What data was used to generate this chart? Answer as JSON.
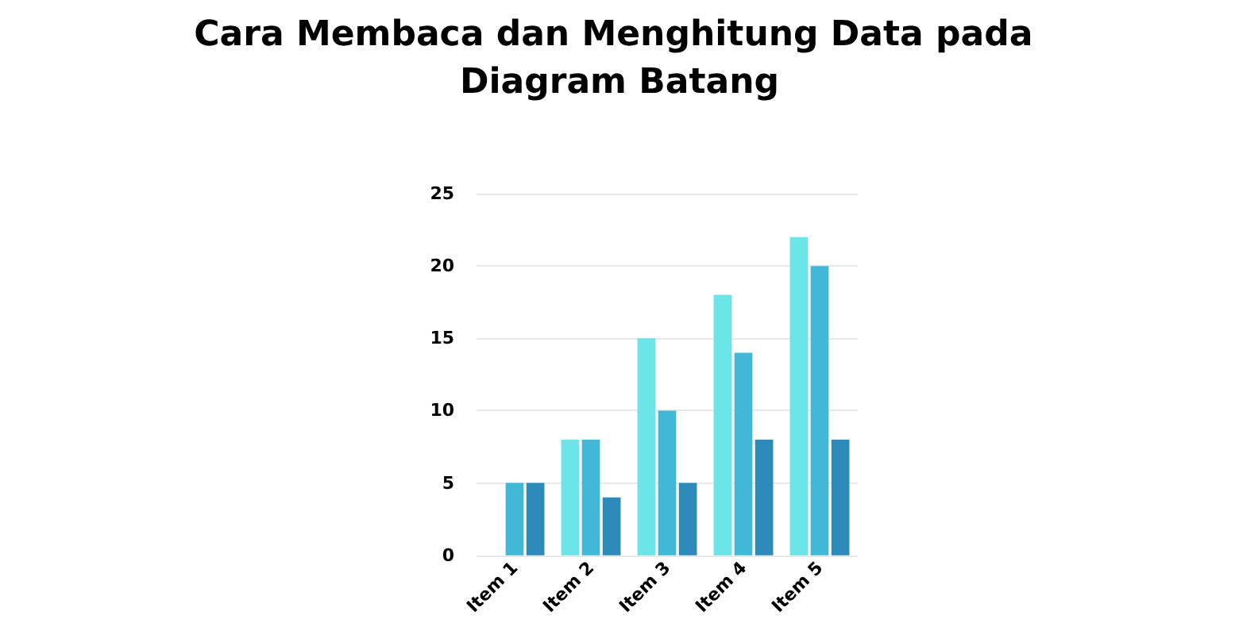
{
  "chart_data": {
    "type": "bar",
    "title": "Cara Membaca dan Menghitung Data pada Diagram Batang",
    "categories": [
      "Item 1",
      "Item 2",
      "Item 3",
      "Item 4",
      "Item 5"
    ],
    "series": [
      {
        "color": "#6ce5e8",
        "values": [
          0,
          8,
          15,
          18,
          22
        ]
      },
      {
        "color": "#41b8d5",
        "values": [
          5,
          8,
          10,
          14,
          20
        ]
      },
      {
        "color": "#2d8bba",
        "values": [
          5,
          4,
          5,
          8,
          8
        ]
      }
    ],
    "ylim": [
      0,
      25
    ],
    "yticks": [
      0,
      5,
      10,
      15,
      20,
      25
    ],
    "grid": "y"
  }
}
